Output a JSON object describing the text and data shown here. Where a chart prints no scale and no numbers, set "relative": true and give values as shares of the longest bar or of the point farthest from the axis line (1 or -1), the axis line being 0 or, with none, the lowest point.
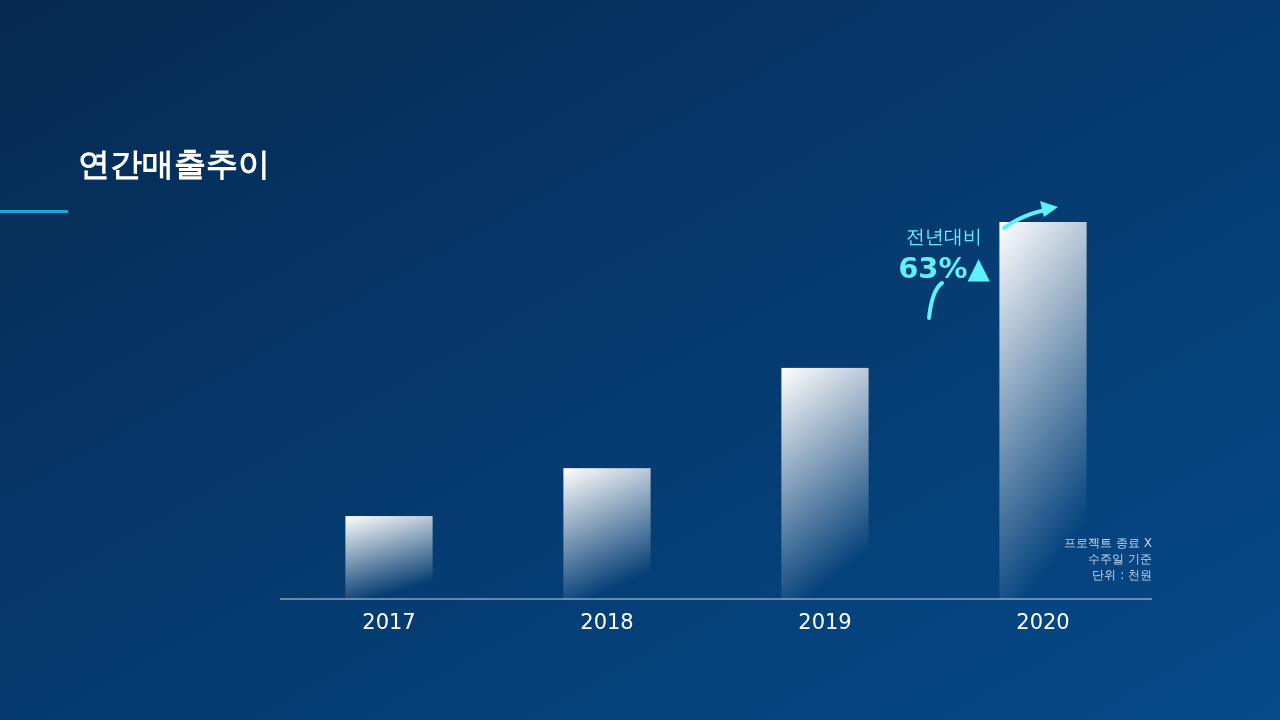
{
  "chart_data": {
    "type": "bar",
    "title": "연간매출추이",
    "categories": [
      "2017",
      "2018",
      "2019",
      "2020"
    ],
    "values": [
      0.22,
      0.347,
      0.613,
      1
    ],
    "color": "#ffffff",
    "relative": true,
    "annotations": [
      "전년대비",
      "63%▲",
      "프로젝트 종료 X",
      "수주일 기준",
      "단위 : 천원"
    ]
  }
}
